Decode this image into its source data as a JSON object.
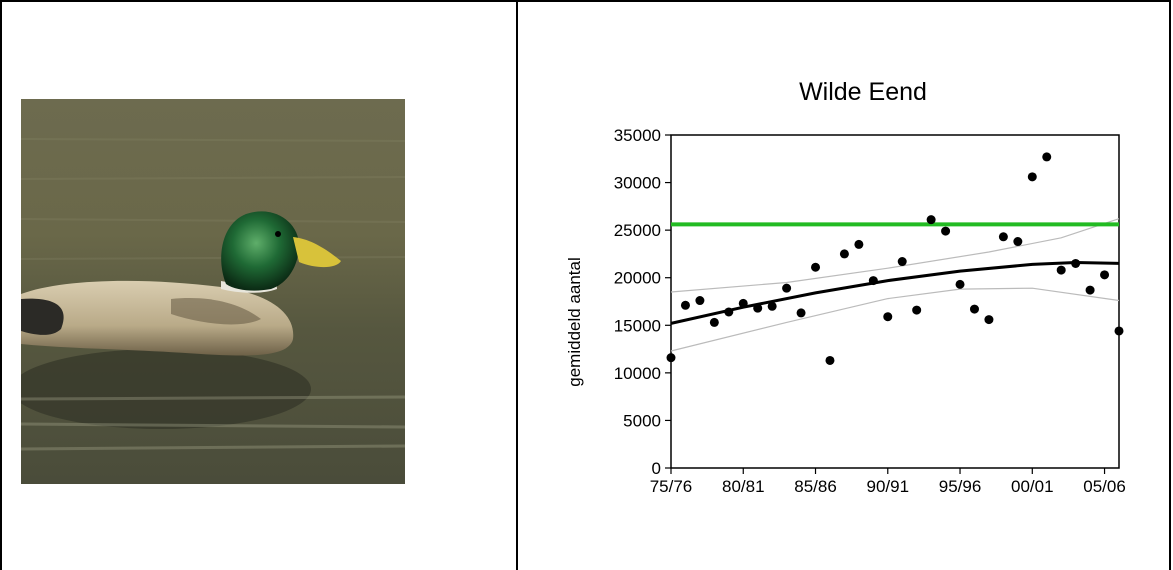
{
  "photo": {
    "subject": "mallard-duck"
  },
  "chart_data": {
    "type": "scatter",
    "title": "Wilde Eend",
    "ylabel": "gemiddeld aantal",
    "xlabel": "",
    "ylim": [
      0,
      35000
    ],
    "xlim": [
      0,
      31
    ],
    "y_ticks": [
      0,
      5000,
      10000,
      15000,
      20000,
      25000,
      30000,
      35000
    ],
    "x_ticks": [
      {
        "pos": 0,
        "label": "75/76"
      },
      {
        "pos": 5,
        "label": "80/81"
      },
      {
        "pos": 10,
        "label": "85/86"
      },
      {
        "pos": 15,
        "label": "90/91"
      },
      {
        "pos": 20,
        "label": "95/96"
      },
      {
        "pos": 25,
        "label": "00/01"
      },
      {
        "pos": 30,
        "label": "05/06"
      }
    ],
    "points": [
      {
        "x": 0,
        "y": 11600
      },
      {
        "x": 1,
        "y": 17100
      },
      {
        "x": 2,
        "y": 17600
      },
      {
        "x": 3,
        "y": 15300
      },
      {
        "x": 4,
        "y": 16400
      },
      {
        "x": 5,
        "y": 17300
      },
      {
        "x": 6,
        "y": 16800
      },
      {
        "x": 7,
        "y": 17000
      },
      {
        "x": 8,
        "y": 18900
      },
      {
        "x": 9,
        "y": 16300
      },
      {
        "x": 10,
        "y": 21100
      },
      {
        "x": 11,
        "y": 11300
      },
      {
        "x": 12,
        "y": 22500
      },
      {
        "x": 13,
        "y": 23500
      },
      {
        "x": 14,
        "y": 19700
      },
      {
        "x": 15,
        "y": 15900
      },
      {
        "x": 16,
        "y": 21700
      },
      {
        "x": 17,
        "y": 16600
      },
      {
        "x": 18,
        "y": 26100
      },
      {
        "x": 19,
        "y": 24900
      },
      {
        "x": 20,
        "y": 19300
      },
      {
        "x": 21,
        "y": 16700
      },
      {
        "x": 22,
        "y": 15600
      },
      {
        "x": 23,
        "y": 24300
      },
      {
        "x": 24,
        "y": 23800
      },
      {
        "x": 25,
        "y": 30600
      },
      {
        "x": 26,
        "y": 32700
      },
      {
        "x": 27,
        "y": 20800
      },
      {
        "x": 28,
        "y": 21500
      },
      {
        "x": 29,
        "y": 18700
      },
      {
        "x": 30,
        "y": 20300
      },
      {
        "x": 31,
        "y": 14400
      }
    ],
    "trend": [
      {
        "x": 0,
        "y": 15200
      },
      {
        "x": 5,
        "y": 16900
      },
      {
        "x": 10,
        "y": 18400
      },
      {
        "x": 15,
        "y": 19700
      },
      {
        "x": 20,
        "y": 20700
      },
      {
        "x": 25,
        "y": 21400
      },
      {
        "x": 28,
        "y": 21600
      },
      {
        "x": 31,
        "y": 21500
      }
    ],
    "upper_band": [
      {
        "x": 0,
        "y": 18500
      },
      {
        "x": 8,
        "y": 19500
      },
      {
        "x": 15,
        "y": 21000
      },
      {
        "x": 22,
        "y": 22700
      },
      {
        "x": 27,
        "y": 24200
      },
      {
        "x": 31,
        "y": 26200
      }
    ],
    "lower_band": [
      {
        "x": 0,
        "y": 12300
      },
      {
        "x": 8,
        "y": 15300
      },
      {
        "x": 15,
        "y": 17800
      },
      {
        "x": 20,
        "y": 18800
      },
      {
        "x": 25,
        "y": 18900
      },
      {
        "x": 31,
        "y": 17600
      }
    ],
    "reference_line": {
      "y": 25600,
      "color": "#22bb22"
    },
    "colors": {
      "points": "#000000",
      "trend": "#000000",
      "band": "#bbbbbb"
    }
  }
}
